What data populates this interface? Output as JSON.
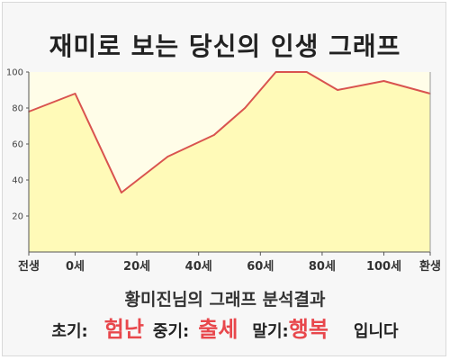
{
  "title": "재미로 보는 당신의 인생 그래프",
  "subtitle": "황미진님의 그래프 분석결과",
  "result": {
    "early_label": "초기:",
    "early_value": "험난",
    "middle_label": "중기:",
    "middle_value": "출세",
    "late_label": "말기:",
    "late_value": "행복",
    "suffix": "입니다"
  },
  "colors": {
    "line": "#d9534f",
    "fill": "#fffab8",
    "plot_bg": "#fffde8",
    "highlight": "#e8474c"
  },
  "chart_data": {
    "type": "area",
    "x": [
      -15,
      0,
      15,
      30,
      45,
      55,
      65,
      75,
      85,
      100,
      115
    ],
    "values": [
      78,
      88,
      33,
      53,
      65,
      80,
      100,
      100,
      90,
      95,
      88
    ],
    "x_ticks": [
      {
        "x": -15,
        "label": "전생"
      },
      {
        "x": 0,
        "label": "0세"
      },
      {
        "x": 20,
        "label": "20세"
      },
      {
        "x": 40,
        "label": "40세"
      },
      {
        "x": 60,
        "label": "60세"
      },
      {
        "x": 80,
        "label": "80세"
      },
      {
        "x": 100,
        "label": "100세"
      },
      {
        "x": 115,
        "label": "환생"
      }
    ],
    "y_ticks": [
      20,
      40,
      60,
      80,
      100
    ],
    "xlim": [
      -15,
      115
    ],
    "ylim": [
      0,
      100
    ],
    "grid": false,
    "legend": "none"
  }
}
